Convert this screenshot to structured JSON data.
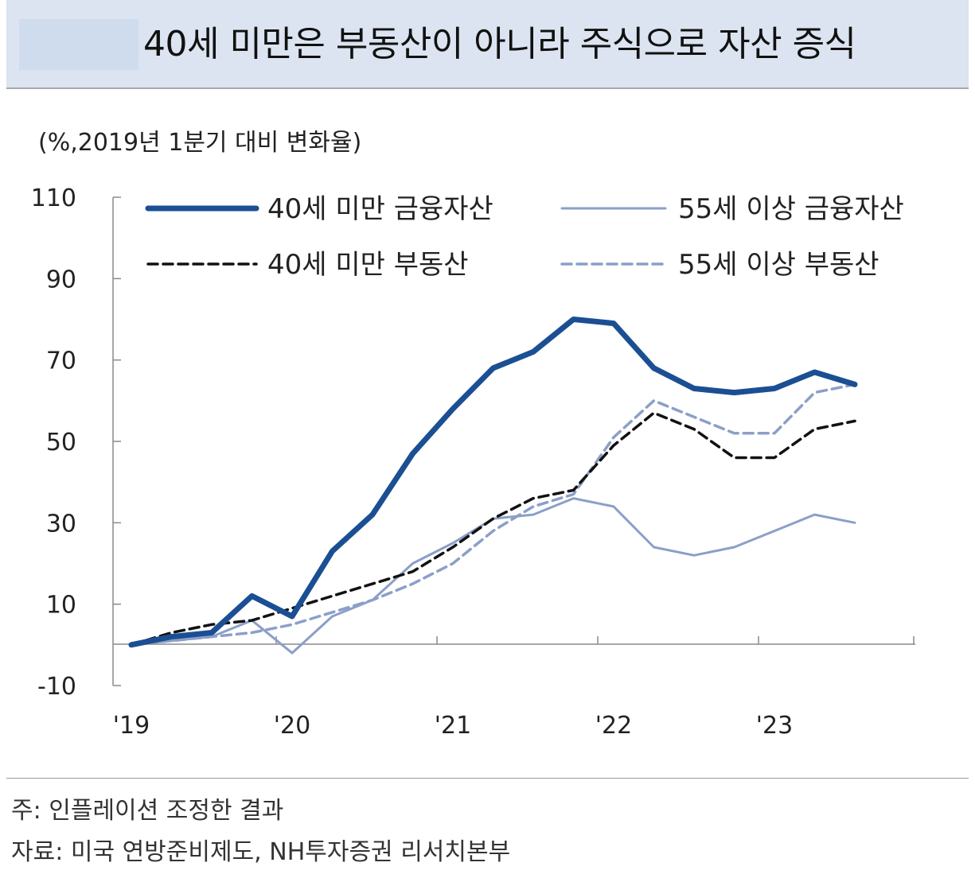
{
  "header": {
    "title": "40세 미만은 부동산이 아니라 주식으로 자산 증식"
  },
  "chart_data": {
    "type": "line",
    "unit_label": "(%,2019년 1분기 대비 변화율)",
    "x": [
      "2019Q1",
      "2019Q2",
      "2019Q3",
      "2019Q4",
      "2020Q1",
      "2020Q2",
      "2020Q3",
      "2020Q4",
      "2021Q1",
      "2021Q2",
      "2021Q3",
      "2021Q4",
      "2022Q1",
      "2022Q2",
      "2022Q3",
      "2022Q4",
      "2023Q1",
      "2023Q2",
      "2023Q3"
    ],
    "x_tick_labels": [
      "'19",
      "'20",
      "'21",
      "'22",
      "'23"
    ],
    "y_tick_labels": [
      "110",
      "90",
      "70",
      "50",
      "30",
      "10",
      "-10"
    ],
    "ylim": [
      -10,
      110
    ],
    "legend_position": "top",
    "series": [
      {
        "name": "40세 미만 금융자산",
        "color": "#1b4f93",
        "style": "solid-thick",
        "values": [
          0,
          2,
          3,
          12,
          7,
          23,
          32,
          47,
          58,
          68,
          72,
          80,
          79,
          68,
          63,
          62,
          63,
          67,
          64
        ]
      },
      {
        "name": "55세 이상 금융자산",
        "color": "#8b9fc8",
        "style": "solid-thin",
        "values": [
          0,
          1,
          2,
          6,
          -2,
          7,
          11,
          20,
          25,
          31,
          32,
          36,
          34,
          24,
          22,
          24,
          28,
          32,
          30
        ]
      },
      {
        "name": "40세 미만 부동산",
        "color": "#111111",
        "style": "dashed",
        "values": [
          0,
          3,
          5,
          6,
          9,
          12,
          15,
          18,
          24,
          31,
          36,
          38,
          49,
          57,
          53,
          46,
          46,
          53,
          55
        ]
      },
      {
        "name": "55세 이상 부동산",
        "color": "#8b9fc8",
        "style": "dashed",
        "values": [
          0,
          1,
          2,
          3,
          5,
          8,
          11,
          15,
          20,
          28,
          34,
          37,
          51,
          60,
          56,
          52,
          52,
          62,
          64
        ]
      }
    ]
  },
  "footer": {
    "note": "주: 인플레이션 조정한 결과",
    "source": "자료: 미국 연방준비제도, NH투자증권 리서치본부"
  }
}
